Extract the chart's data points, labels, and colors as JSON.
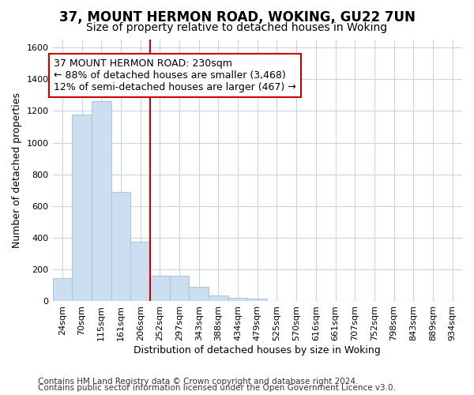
{
  "title": "37, MOUNT HERMON ROAD, WOKING, GU22 7UN",
  "subtitle": "Size of property relative to detached houses in Woking",
  "xlabel": "Distribution of detached houses by size in Woking",
  "ylabel": "Number of detached properties",
  "footnote1": "Contains HM Land Registry data © Crown copyright and database right 2024.",
  "footnote2": "Contains public sector information licensed under the Open Government Licence v3.0.",
  "annotation_title": "37 MOUNT HERMON ROAD: 230sqm",
  "annotation_line1": "← 88% of detached houses are smaller (3,468)",
  "annotation_line2": "12% of semi-detached houses are larger (467) →",
  "bar_edge_color": "#aec8e0",
  "bar_face_color": "#ccdff0",
  "vline_color": "#cc0000",
  "annotation_box_color": "#cc0000",
  "background_color": "#ffffff",
  "grid_color": "#c8d4e8",
  "categories": [
    "24sqm",
    "70sqm",
    "115sqm",
    "161sqm",
    "206sqm",
    "252sqm",
    "297sqm",
    "343sqm",
    "388sqm",
    "434sqm",
    "479sqm",
    "525sqm",
    "570sqm",
    "616sqm",
    "661sqm",
    "707sqm",
    "752sqm",
    "798sqm",
    "843sqm",
    "889sqm",
    "934sqm"
  ],
  "values": [
    148,
    1175,
    1263,
    688,
    375,
    160,
    160,
    90,
    35,
    20,
    15,
    0,
    0,
    0,
    0,
    0,
    0,
    0,
    0,
    0,
    0
  ],
  "ylim": [
    0,
    1650
  ],
  "yticks": [
    0,
    200,
    400,
    600,
    800,
    1000,
    1200,
    1400,
    1600
  ],
  "vline_x_index": 5.0,
  "title_fontsize": 12,
  "subtitle_fontsize": 10,
  "axis_label_fontsize": 9,
  "tick_fontsize": 8,
  "annotation_fontsize": 9,
  "footnote_fontsize": 7.5
}
